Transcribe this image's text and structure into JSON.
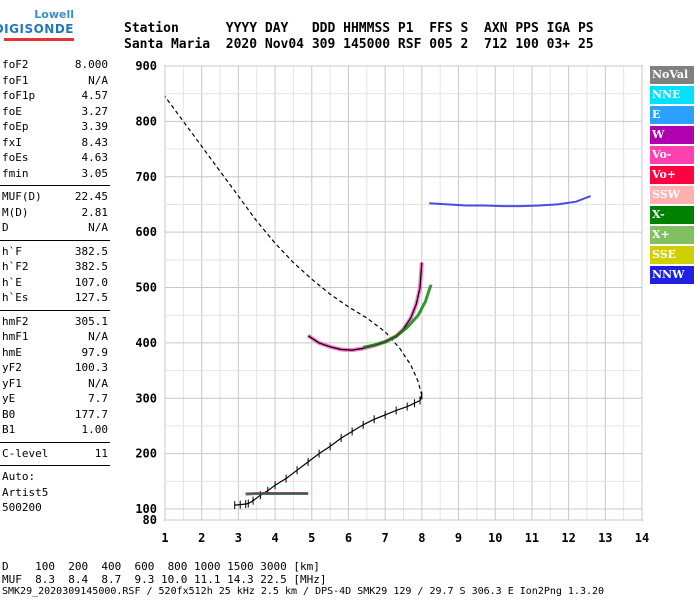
{
  "logo": {
    "top": "Lowell",
    "bottom": "DIGISONDE"
  },
  "header": {
    "line1": "Station      YYYY DAY   DDD HHMMSS P1  FFS S  AXN PPS IGA PS",
    "line2": "Santa Maria  2020 Nov04 309 145000 RSF 005 2  712 100 03+ 25"
  },
  "params": {
    "group1": [
      {
        "k": "foF2",
        "v": "8.000"
      },
      {
        "k": "foF1",
        "v": "N/A"
      },
      {
        "k": "foF1p",
        "v": "4.57"
      },
      {
        "k": "foE",
        "v": "3.27"
      },
      {
        "k": "foEp",
        "v": "3.39"
      },
      {
        "k": "fxI",
        "v": "8.43"
      },
      {
        "k": "foEs",
        "v": "4.63"
      },
      {
        "k": "fmin",
        "v": "3.05"
      }
    ],
    "group2": [
      {
        "k": "MUF(D)",
        "v": "22.45"
      },
      {
        "k": "M(D)",
        "v": "2.81"
      },
      {
        "k": "D",
        "v": "N/A"
      }
    ],
    "group3": [
      {
        "k": "h`F",
        "v": "382.5"
      },
      {
        "k": "h`F2",
        "v": "382.5"
      },
      {
        "k": "h`E",
        "v": "107.0"
      },
      {
        "k": "h`Es",
        "v": "127.5"
      }
    ],
    "group4": [
      {
        "k": "hmF2",
        "v": "305.1"
      },
      {
        "k": "hmF1",
        "v": "N/A"
      },
      {
        "k": "hmE",
        "v": "97.9"
      },
      {
        "k": "yF2",
        "v": "100.3"
      },
      {
        "k": "yF1",
        "v": "N/A"
      },
      {
        "k": "yE",
        "v": "7.7"
      },
      {
        "k": "B0",
        "v": "177.7"
      },
      {
        "k": "B1",
        "v": "1.00"
      }
    ],
    "group5": [
      {
        "k": "C-level",
        "v": "11"
      }
    ],
    "auto": [
      "Auto:",
      "Artist5",
      "500200"
    ]
  },
  "legend": [
    {
      "label": "NoVal",
      "color": "#808080"
    },
    {
      "label": "NNE",
      "color": "#00e0ff"
    },
    {
      "label": "E",
      "color": "#2aa0ff"
    },
    {
      "label": "W",
      "color": "#b000b0"
    },
    {
      "label": "Vo-",
      "color": "#ff40b0"
    },
    {
      "label": "Vo+",
      "color": "#ff0040"
    },
    {
      "label": "SSW",
      "color": "#ffb0b0"
    },
    {
      "label": "X-",
      "color": "#008000"
    },
    {
      "label": "X+",
      "color": "#80c060"
    },
    {
      "label": "SSE",
      "color": "#d0d000"
    },
    {
      "label": "NNW",
      "color": "#2020e0"
    }
  ],
  "footer": {
    "line1": "D    100  200  400  600  800 1000 1500 3000 [km]",
    "line2": "MUF  8.3  8.4  8.7  9.3 10.0 11.1 14.3 22.5 [MHz]",
    "line3": "SMK29_2020309145000.RSF / 520fx512h 25 kHz 2.5 km / DPS-4D SMK29 129 / 29.7 S 306.3 E Ion2Png 1.3.20"
  },
  "chart_data": {
    "type": "scatter",
    "xlim": [
      1,
      14
    ],
    "ylim": [
      80,
      900
    ],
    "x_ticks": [
      1,
      2,
      3,
      4,
      5,
      6,
      7,
      8,
      9,
      10,
      11,
      12,
      13,
      14
    ],
    "y_ticks": [
      80,
      100,
      200,
      300,
      400,
      500,
      600,
      700,
      800,
      900
    ],
    "grid": true,
    "series": [
      {
        "role": "profile",
        "x": [
          2.9,
          3.05,
          3.2,
          3.27,
          3.4,
          3.6,
          3.8,
          4.0,
          4.3,
          4.6,
          4.9,
          5.2,
          5.5,
          5.8,
          6.1,
          6.4,
          6.7,
          7.0,
          7.3,
          7.6,
          7.8,
          7.95,
          8.0
        ],
        "y": [
          107,
          108,
          109,
          110,
          115,
          125,
          133,
          143,
          155,
          170,
          185,
          200,
          213,
          228,
          240,
          252,
          262,
          270,
          278,
          285,
          291,
          296,
          305
        ]
      },
      {
        "role": "topside",
        "x": [
          8.0,
          7.9,
          7.7,
          7.4,
          7.0,
          6.5,
          6.0,
          5.5,
          5.0,
          4.5,
          4.0,
          3.5,
          3.0,
          2.5,
          2.0,
          1.5,
          1.0
        ],
        "y": [
          305,
          330,
          360,
          390,
          420,
          445,
          465,
          488,
          515,
          545,
          580,
          620,
          665,
          710,
          755,
          800,
          845
        ]
      },
      {
        "role": "trace",
        "x": [
          4.9,
          5.2,
          5.5,
          5.8,
          6.1,
          6.4,
          6.7,
          7.0,
          7.3,
          7.5,
          7.7,
          7.85,
          7.95,
          8.0
        ],
        "y": [
          413,
          400,
          393,
          388,
          387,
          390,
          395,
          402,
          412,
          425,
          445,
          470,
          500,
          545
        ]
      },
      {
        "role": "trace-x",
        "x": [
          6.4,
          6.7,
          7.0,
          7.3,
          7.6,
          7.9,
          8.1,
          8.25
        ],
        "y": [
          392,
          396,
          402,
          412,
          428,
          450,
          475,
          505
        ]
      },
      {
        "role": "trace-far",
        "x": [
          8.2,
          8.7,
          9.2,
          9.7,
          10.2,
          10.7,
          11.2,
          11.7,
          12.2,
          12.6
        ],
        "y": [
          652,
          650,
          648,
          648,
          647,
          647,
          648,
          650,
          655,
          665
        ]
      },
      {
        "role": "es",
        "x": [
          3.2,
          3.5,
          3.8,
          4.1,
          4.4,
          4.7,
          4.9
        ],
        "y": [
          127,
          128,
          128,
          128,
          128,
          128,
          128
        ]
      }
    ]
  }
}
